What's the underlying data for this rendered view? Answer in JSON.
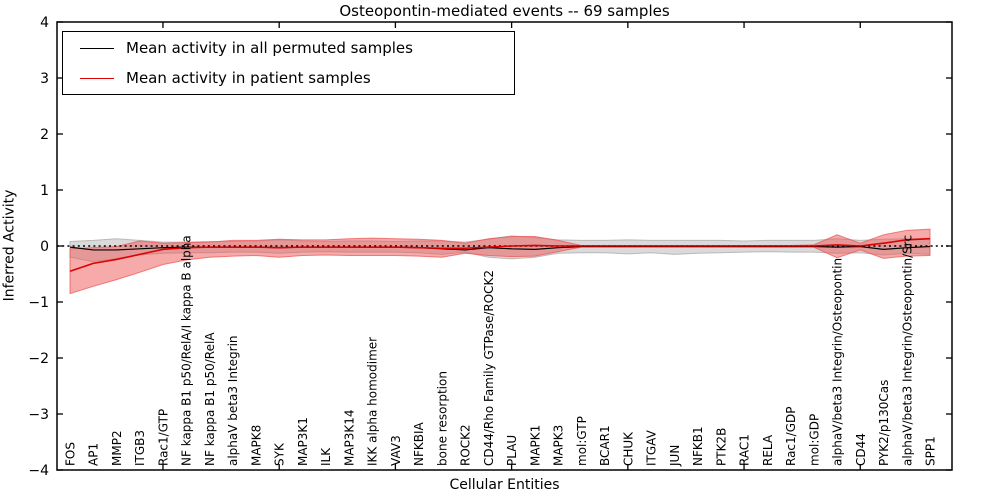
{
  "header": {
    "title": "Osteopontin-mediated events -- 69 samples"
  },
  "axes": {
    "ylabel": "Inferred Activity",
    "xlabel": "Cellular Entities",
    "ytick_labels": [
      "4",
      "3",
      "2",
      "1",
      "0",
      "−1",
      "−2",
      "−3",
      "−4"
    ]
  },
  "chart_data": {
    "type": "line",
    "title": "Osteopontin-mediated events -- 69 samples",
    "xlabel": "Cellular Entities",
    "ylabel": "Inferred Activity",
    "ylim": [
      -4,
      4
    ],
    "ytick_values": [
      4,
      3,
      2,
      1,
      0,
      -1,
      -2,
      -3,
      -4
    ],
    "xtick_category_indices": [
      4,
      9,
      14,
      19,
      24,
      29,
      34
    ],
    "grid": false,
    "zero_line": true,
    "legend_position": "upper left",
    "categories": [
      "FOS",
      "AP1",
      "MMP2",
      "ITGB3",
      "Rac1/GTP",
      "NF kappa B1 p50/RelA/I kappa B alpha",
      "NF kappa B1 p50/RelA",
      "alphaV beta3 Integrin",
      "MAPK8",
      "SYK",
      "MAP3K1",
      "ILK",
      "MAP3K14",
      "IKK alpha homodimer",
      "VAV3",
      "NFKBIA",
      "bone resorption",
      "ROCK2",
      "CD44/Rho Family GTPase/ROCK2",
      "PLAU",
      "MAPK1",
      "MAPK3",
      "mol:GTP",
      "BCAR1",
      "CHUK",
      "ITGAV",
      "JUN",
      "NFKB1",
      "PTK2B",
      "RAC1",
      "RELA",
      "Rac1/GDP",
      "mol:GDP",
      "alphaV/beta3 Integrin/Osteopontin",
      "CD44",
      "PYK2/p130Cas",
      "alphaV/beta3 Integrin/Osteopontin/Src",
      "SPP1"
    ],
    "legend": [
      {
        "label": "Mean activity in all permuted samples",
        "color": "#000000"
      },
      {
        "label": "Mean activity in patient samples",
        "color": "#dd0000"
      }
    ],
    "series": [
      {
        "name": "Mean activity in all permuted samples",
        "color": "#000000",
        "width": 1.2,
        "values": [
          -0.02,
          -0.07,
          -0.07,
          -0.05,
          -0.03,
          -0.02,
          -0.02,
          -0.02,
          -0.02,
          -0.03,
          -0.02,
          -0.02,
          -0.02,
          -0.02,
          -0.02,
          -0.03,
          -0.05,
          -0.07,
          -0.03,
          -0.05,
          -0.06,
          -0.03,
          -0.01,
          -0.01,
          -0.01,
          -0.01,
          -0.01,
          -0.01,
          -0.01,
          -0.01,
          -0.01,
          -0.01,
          -0.01,
          -0.02,
          -0.01,
          -0.06,
          -0.03,
          -0.01
        ]
      },
      {
        "name": "Mean activity in patient samples",
        "color": "#dd0000",
        "width": 1.6,
        "values": [
          -0.45,
          -0.31,
          -0.24,
          -0.15,
          -0.06,
          -0.03,
          -0.02,
          -0.02,
          -0.02,
          -0.03,
          -0.02,
          -0.02,
          -0.02,
          -0.02,
          -0.02,
          -0.03,
          -0.04,
          -0.04,
          -0.02,
          0.0,
          0.01,
          0.0,
          0.0,
          0.0,
          0.0,
          0.0,
          0.0,
          0.0,
          0.0,
          0.0,
          0.0,
          0.0,
          0.0,
          0.02,
          0.0,
          0.05,
          0.11,
          0.13
        ]
      }
    ],
    "bands": [
      {
        "name": "permuted-samples-range",
        "color": "#a8a8a8",
        "opacity": 0.42,
        "top": [
          0.08,
          0.1,
          0.13,
          0.1,
          0.07,
          0.07,
          0.08,
          0.08,
          0.09,
          0.11,
          0.09,
          0.08,
          0.09,
          0.09,
          0.08,
          0.09,
          0.09,
          0.07,
          0.12,
          0.18,
          0.15,
          0.11,
          0.1,
          0.1,
          0.11,
          0.1,
          0.1,
          0.1,
          0.1,
          0.09,
          0.1,
          0.1,
          0.1,
          0.13,
          0.1,
          0.12,
          0.13,
          0.13
        ],
        "bottom": [
          -0.2,
          -0.28,
          -0.22,
          -0.16,
          -0.13,
          -0.12,
          -0.12,
          -0.11,
          -0.11,
          -0.13,
          -0.11,
          -0.1,
          -0.11,
          -0.11,
          -0.11,
          -0.12,
          -0.15,
          -0.11,
          -0.2,
          -0.23,
          -0.2,
          -0.13,
          -0.12,
          -0.12,
          -0.14,
          -0.12,
          -0.15,
          -0.13,
          -0.12,
          -0.11,
          -0.1,
          -0.11,
          -0.11,
          -0.13,
          -0.12,
          -0.16,
          -0.13,
          -0.15
        ]
      },
      {
        "name": "patient-samples-range",
        "color": "#ee5555",
        "opacity": 0.5,
        "top": [
          -0.05,
          -0.03,
          -0.01,
          0.09,
          0.05,
          0.06,
          0.07,
          0.1,
          0.1,
          0.12,
          0.11,
          0.11,
          0.13,
          0.14,
          0.13,
          0.12,
          0.1,
          0.05,
          0.13,
          0.17,
          0.17,
          0.1,
          0.01,
          0.01,
          0.01,
          0.01,
          0.01,
          0.01,
          0.01,
          0.01,
          0.01,
          0.01,
          0.02,
          0.2,
          0.05,
          0.2,
          0.28,
          0.3
        ],
        "bottom": [
          -0.85,
          -0.72,
          -0.6,
          -0.47,
          -0.33,
          -0.25,
          -0.2,
          -0.18,
          -0.17,
          -0.2,
          -0.17,
          -0.16,
          -0.17,
          -0.17,
          -0.17,
          -0.18,
          -0.2,
          -0.13,
          -0.17,
          -0.19,
          -0.18,
          -0.1,
          -0.02,
          -0.02,
          -0.02,
          -0.02,
          -0.02,
          -0.02,
          -0.02,
          -0.02,
          -0.02,
          -0.02,
          -0.02,
          -0.21,
          -0.07,
          -0.22,
          -0.18,
          -0.17
        ]
      }
    ]
  }
}
